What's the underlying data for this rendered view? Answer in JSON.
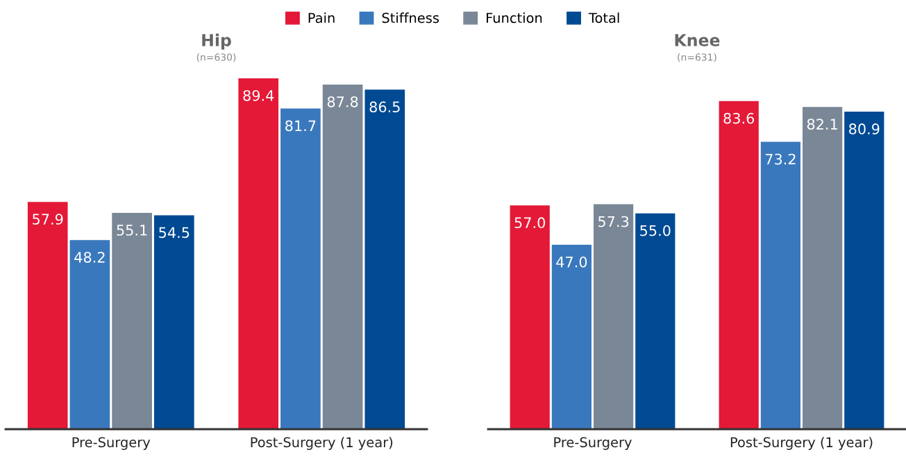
{
  "chart_data": [
    {
      "type": "bar",
      "title": "Hip",
      "subtitle": "(n=630)",
      "categories": [
        "Pre-Surgery",
        "Post-Surgery (1 year)"
      ],
      "legend": "top",
      "grid": false,
      "tick_labels": "x",
      "series": [
        {
          "name": "Pain",
          "color": "#e31937",
          "values": [
            57.9,
            89.4
          ],
          "value_labels": [
            "57.9",
            "89.4"
          ]
        },
        {
          "name": "Stiffness",
          "color": "#3a78bd",
          "values": [
            48.2,
            81.7
          ],
          "value_labels": [
            "48.2",
            "81.7"
          ]
        },
        {
          "name": "Function",
          "color": "#7a8797",
          "values": [
            55.1,
            87.8
          ],
          "value_labels": [
            "55.1",
            "87.8"
          ]
        },
        {
          "name": "Total",
          "color": "#004a93",
          "values": [
            54.5,
            86.5
          ],
          "value_labels": [
            "54.5",
            "86.5"
          ]
        }
      ]
    },
    {
      "type": "bar",
      "title": "Knee",
      "subtitle": "(n=631)",
      "categories": [
        "Pre-Surgery",
        "Post-Surgery (1 year)"
      ],
      "grid": false,
      "tick_labels": "x",
      "series": [
        {
          "color": "#e31937",
          "values": [
            57.0,
            83.6
          ],
          "value_labels": [
            "57.0",
            "83.6"
          ]
        },
        {
          "color": "#3a78bd",
          "values": [
            47.0,
            73.2
          ],
          "value_labels": [
            "47.0",
            "73.2"
          ]
        },
        {
          "color": "#7a8797",
          "values": [
            57.3,
            82.1
          ],
          "value_labels": [
            "57.3",
            "82.1"
          ]
        },
        {
          "color": "#004a93",
          "values": [
            55.0,
            80.9
          ],
          "value_labels": [
            "55.0",
            "80.9"
          ]
        }
      ]
    }
  ]
}
